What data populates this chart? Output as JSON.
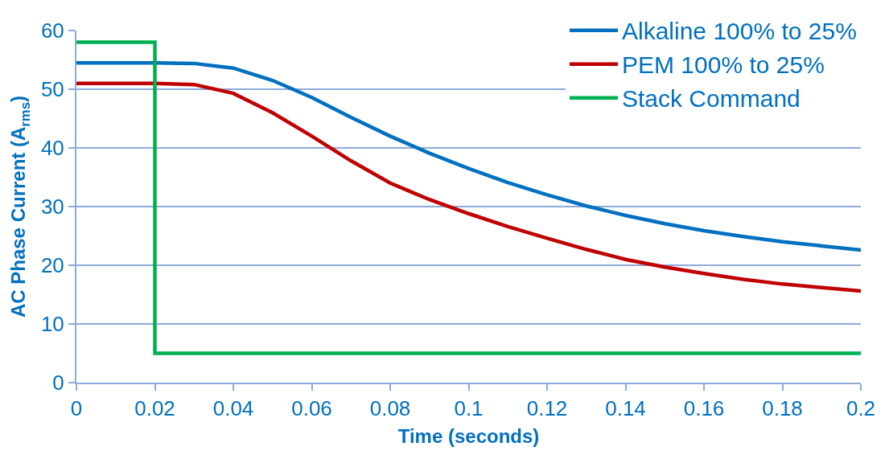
{
  "chart_data": {
    "type": "line",
    "xlabel": "Time (seconds)",
    "ylabel": "AC Phase Current (A$_{rms}$)",
    "series": [
      {
        "name": "Alkaline 100% to 25%",
        "color": "#0070c0",
        "x": [
          0,
          0.01,
          0.02,
          0.03,
          0.04,
          0.05,
          0.06,
          0.07,
          0.08,
          0.09,
          0.1,
          0.11,
          0.12,
          0.13,
          0.14,
          0.15,
          0.16,
          0.17,
          0.18,
          0.19,
          0.2
        ],
        "values": [
          54.5,
          54.5,
          54.5,
          54.4,
          53.6,
          51.5,
          48.6,
          45.2,
          42,
          39.1,
          36.5,
          34.1,
          32,
          30.1,
          28.5,
          27.1,
          25.9,
          24.9,
          24,
          23.3,
          22.6
        ]
      },
      {
        "name": "PEM 100% to 25%",
        "color": "#c00000",
        "x": [
          0,
          0.01,
          0.02,
          0.03,
          0.04,
          0.05,
          0.06,
          0.07,
          0.08,
          0.09,
          0.1,
          0.11,
          0.12,
          0.13,
          0.14,
          0.15,
          0.16,
          0.17,
          0.18,
          0.19,
          0.2
        ],
        "values": [
          51,
          51,
          51,
          50.8,
          49.3,
          46,
          42,
          37.8,
          34,
          31.2,
          28.8,
          26.6,
          24.6,
          22.7,
          21,
          19.7,
          18.6,
          17.6,
          16.8,
          16.2,
          15.6
        ]
      },
      {
        "name": "Stack Command",
        "color": "#00b050",
        "x": [
          0,
          0.02,
          0.02,
          0.2
        ],
        "values": [
          58,
          58,
          5,
          5
        ]
      }
    ],
    "xlim": [
      0,
      0.2
    ],
    "xticks": [
      0,
      0.02,
      0.04,
      0.06,
      0.08,
      0.1,
      0.12,
      0.14,
      0.16,
      0.18,
      0.2
    ],
    "ylim": [
      0,
      60
    ],
    "yticks": [
      0,
      10,
      20,
      30,
      40,
      50,
      60
    ],
    "grid": "y",
    "legend": "top right",
    "marker": "none",
    "line_style": "solid"
  }
}
